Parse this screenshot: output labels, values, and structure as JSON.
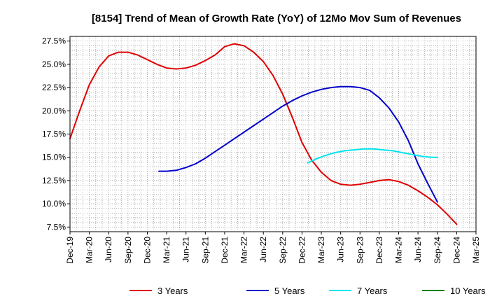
{
  "chart_data": {
    "type": "line",
    "title": "[8154]  Trend of Mean of Growth Rate (YoY) of 12Mo Mov Sum of Revenues",
    "xlabel": "",
    "ylabel": "",
    "ylim": [
      7.0,
      28.0
    ],
    "y_ticks": [
      7.5,
      10.0,
      12.5,
      15.0,
      17.5,
      20.0,
      22.5,
      25.0,
      27.5
    ],
    "y_tick_labels": [
      "7.5%",
      "10.0%",
      "12.5%",
      "15.0%",
      "17.5%",
      "20.0%",
      "22.5%",
      "25.0%",
      "27.5%"
    ],
    "x_tick_labels": [
      "Dec-19",
      "Mar-20",
      "Jun-20",
      "Sep-20",
      "Dec-20",
      "Mar-21",
      "Jun-21",
      "Sep-21",
      "Dec-21",
      "Mar-22",
      "Jun-22",
      "Sep-22",
      "Dec-22",
      "Mar-23",
      "Jun-23",
      "Sep-23",
      "Dec-23",
      "Mar-24",
      "Jun-24",
      "Sep-24",
      "Dec-24",
      "Mar-25"
    ],
    "grid": true,
    "legend_position": "bottom",
    "series": [
      {
        "name": "3 Years",
        "color": "#e00000",
        "points": [
          [
            0,
            17.0
          ],
          [
            0.5,
            20.0
          ],
          [
            1,
            22.8
          ],
          [
            1.5,
            24.7
          ],
          [
            2,
            25.9
          ],
          [
            2.5,
            26.3
          ],
          [
            3,
            26.3
          ],
          [
            3.5,
            26.0
          ],
          [
            4,
            25.5
          ],
          [
            4.5,
            25.0
          ],
          [
            5,
            24.6
          ],
          [
            5.5,
            24.5
          ],
          [
            6,
            24.6
          ],
          [
            6.5,
            24.9
          ],
          [
            7,
            25.4
          ],
          [
            7.5,
            26.0
          ],
          [
            8,
            26.9
          ],
          [
            8.5,
            27.2
          ],
          [
            9,
            27.0
          ],
          [
            9.5,
            26.3
          ],
          [
            10,
            25.3
          ],
          [
            10.5,
            23.8
          ],
          [
            11,
            21.8
          ],
          [
            11.5,
            19.3
          ],
          [
            12,
            16.6
          ],
          [
            12.5,
            14.7
          ],
          [
            13,
            13.4
          ],
          [
            13.5,
            12.5
          ],
          [
            14,
            12.1
          ],
          [
            14.5,
            12.0
          ],
          [
            15,
            12.1
          ],
          [
            15.5,
            12.3
          ],
          [
            16,
            12.5
          ],
          [
            16.5,
            12.6
          ],
          [
            17,
            12.4
          ],
          [
            17.5,
            12.0
          ],
          [
            18,
            11.4
          ],
          [
            18.5,
            10.7
          ],
          [
            19,
            9.9
          ],
          [
            19.5,
            8.9
          ],
          [
            20,
            7.8
          ]
        ]
      },
      {
        "name": "5 Years",
        "color": "#0000cc",
        "points": [
          [
            4.6,
            13.5
          ],
          [
            5,
            13.5
          ],
          [
            5.5,
            13.6
          ],
          [
            6,
            13.9
          ],
          [
            6.5,
            14.3
          ],
          [
            7,
            14.9
          ],
          [
            7.5,
            15.6
          ],
          [
            8,
            16.3
          ],
          [
            8.5,
            17.0
          ],
          [
            9,
            17.7
          ],
          [
            9.5,
            18.4
          ],
          [
            10,
            19.1
          ],
          [
            10.5,
            19.8
          ],
          [
            11,
            20.5
          ],
          [
            11.5,
            21.1
          ],
          [
            12,
            21.6
          ],
          [
            12.5,
            22.0
          ],
          [
            13,
            22.3
          ],
          [
            13.5,
            22.5
          ],
          [
            14,
            22.6
          ],
          [
            14.5,
            22.6
          ],
          [
            15,
            22.5
          ],
          [
            15.5,
            22.2
          ],
          [
            16,
            21.4
          ],
          [
            16.5,
            20.3
          ],
          [
            17,
            18.8
          ],
          [
            17.5,
            16.8
          ],
          [
            18,
            14.3
          ],
          [
            18.5,
            12.2
          ],
          [
            19,
            10.2
          ]
        ]
      },
      {
        "name": "7 Years",
        "color": "#00e5ee",
        "points": [
          [
            12.3,
            14.4
          ],
          [
            12.7,
            14.8
          ],
          [
            13.2,
            15.2
          ],
          [
            13.7,
            15.5
          ],
          [
            14.2,
            15.7
          ],
          [
            14.7,
            15.8
          ],
          [
            15.2,
            15.9
          ],
          [
            15.7,
            15.9
          ],
          [
            16.2,
            15.8
          ],
          [
            16.7,
            15.7
          ],
          [
            17.2,
            15.5
          ],
          [
            17.7,
            15.3
          ],
          [
            18.2,
            15.1
          ],
          [
            18.7,
            15.0
          ],
          [
            19.0,
            15.0
          ]
        ]
      },
      {
        "name": "10 Years",
        "color": "#008000",
        "points": []
      }
    ]
  }
}
